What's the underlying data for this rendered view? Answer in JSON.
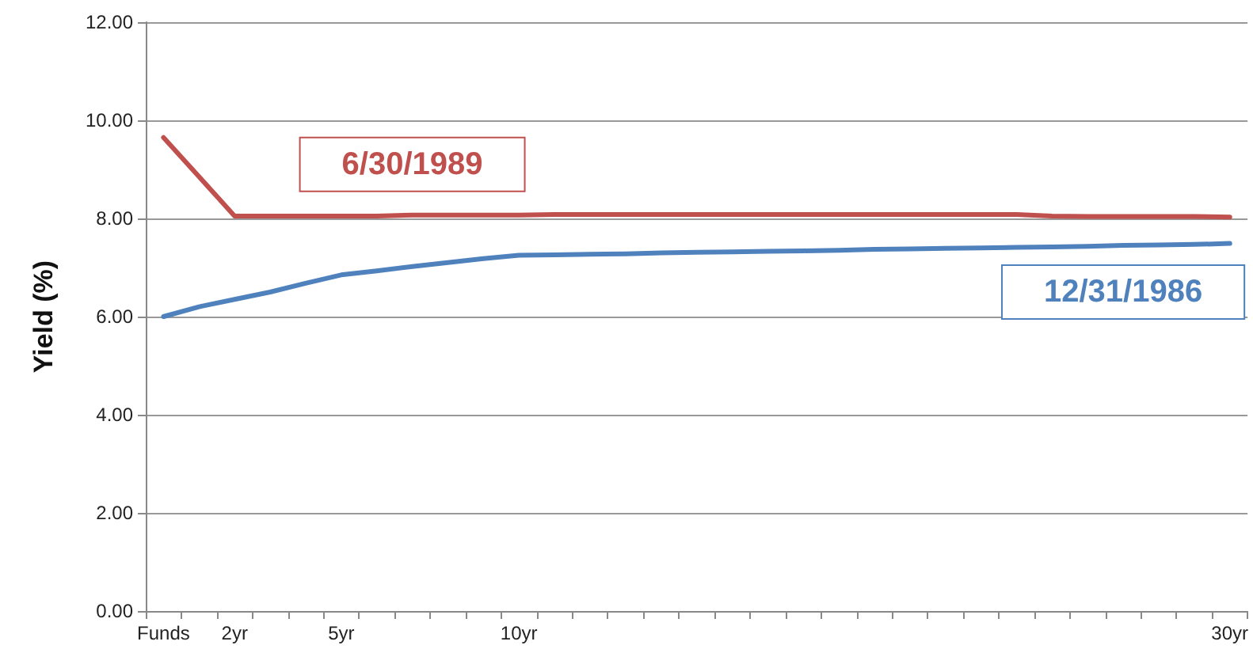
{
  "chart_data": {
    "type": "line",
    "ylabel": "Yield (%)",
    "categories": [
      "Funds",
      null,
      "2yr",
      null,
      null,
      "5yr",
      null,
      null,
      null,
      null,
      "10yr",
      null,
      null,
      null,
      null,
      null,
      null,
      null,
      null,
      null,
      null,
      null,
      null,
      null,
      null,
      null,
      null,
      null,
      null,
      null,
      "30yr"
    ],
    "series": [
      {
        "name": "6/30/1989",
        "color": "#c0504d",
        "values": [
          9.65,
          8.85,
          8.05,
          8.05,
          8.05,
          8.05,
          8.05,
          8.07,
          8.07,
          8.07,
          8.07,
          8.08,
          8.08,
          8.08,
          8.08,
          8.08,
          8.08,
          8.08,
          8.08,
          8.08,
          8.08,
          8.08,
          8.08,
          8.08,
          8.08,
          8.05,
          8.04,
          8.04,
          8.04,
          8.04,
          8.03
        ]
      },
      {
        "name": "12/31/1986",
        "color": "#4f81bd",
        "values": [
          6.0,
          6.2,
          6.35,
          6.5,
          6.68,
          6.85,
          6.93,
          7.02,
          7.1,
          7.18,
          7.25,
          7.26,
          7.27,
          7.28,
          7.3,
          7.31,
          7.32,
          7.33,
          7.34,
          7.35,
          7.37,
          7.38,
          7.39,
          7.4,
          7.41,
          7.42,
          7.43,
          7.45,
          7.46,
          7.47,
          7.49
        ]
      }
    ],
    "ylim": [
      0,
      12
    ],
    "yticks": [
      {
        "value": 0,
        "label": "0.00"
      },
      {
        "value": 2,
        "label": "2.00"
      },
      {
        "value": 4,
        "label": "4.00"
      },
      {
        "value": 6,
        "label": "6.00"
      },
      {
        "value": 8,
        "label": "8.00"
      },
      {
        "value": 10,
        "label": "10.00"
      },
      {
        "value": 12,
        "label": "12.00"
      }
    ],
    "grid": "y",
    "legend": false,
    "marker": "none",
    "line_style": "solid"
  }
}
